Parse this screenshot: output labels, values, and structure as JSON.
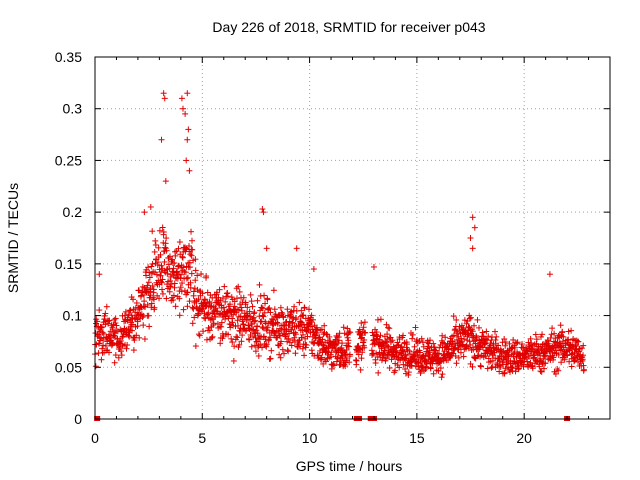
{
  "chart_data": {
    "type": "scatter",
    "title": "Day 226 of 2018, SRMTID for receiver p043",
    "xlabel": "GPS time / hours",
    "ylabel": "SRMTID / TECUs",
    "xlim": [
      0,
      24
    ],
    "ylim": [
      0,
      0.35
    ],
    "x_ticks": [
      0,
      5,
      10,
      15,
      20
    ],
    "y_ticks": [
      0,
      0.05,
      0.1,
      0.15,
      0.2,
      0.25,
      0.3,
      0.35
    ],
    "x_tick_labels": [
      "0",
      "5",
      "10",
      "15",
      "20"
    ],
    "y_tick_labels": [
      "0",
      "0.05",
      "0.1",
      "0.15",
      "0.2",
      "0.25",
      "0.3",
      "0.35"
    ],
    "grid": true,
    "marker": "+",
    "color": "#e00000",
    "trend_profile": [
      [
        0.0,
        0.085
      ],
      [
        1.0,
        0.08
      ],
      [
        1.5,
        0.085
      ],
      [
        2.0,
        0.1
      ],
      [
        2.5,
        0.13
      ],
      [
        3.0,
        0.15
      ],
      [
        3.5,
        0.14
      ],
      [
        4.0,
        0.13
      ],
      [
        4.4,
        0.15
      ],
      [
        4.8,
        0.11
      ],
      [
        6.0,
        0.1
      ],
      [
        8.0,
        0.09
      ],
      [
        10.0,
        0.085
      ],
      [
        11.0,
        0.065
      ],
      [
        12.0,
        0.07
      ],
      [
        13.0,
        0.075
      ],
      [
        14.0,
        0.065
      ],
      [
        16.0,
        0.06
      ],
      [
        17.5,
        0.08
      ],
      [
        18.0,
        0.07
      ],
      [
        19.0,
        0.06
      ],
      [
        20.0,
        0.06
      ],
      [
        21.0,
        0.065
      ],
      [
        22.0,
        0.07
      ],
      [
        22.8,
        0.06
      ]
    ],
    "notable_points": [
      {
        "x": 3.2,
        "y": 0.315
      },
      {
        "x": 3.25,
        "y": 0.31
      },
      {
        "x": 4.05,
        "y": 0.31
      },
      {
        "x": 4.1,
        "y": 0.3
      },
      {
        "x": 4.3,
        "y": 0.315
      },
      {
        "x": 4.2,
        "y": 0.295
      },
      {
        "x": 4.35,
        "y": 0.28
      },
      {
        "x": 4.25,
        "y": 0.25
      },
      {
        "x": 3.1,
        "y": 0.27
      },
      {
        "x": 3.3,
        "y": 0.23
      },
      {
        "x": 4.4,
        "y": 0.24
      },
      {
        "x": 4.3,
        "y": 0.27
      },
      {
        "x": 7.8,
        "y": 0.203
      },
      {
        "x": 7.85,
        "y": 0.2
      },
      {
        "x": 17.6,
        "y": 0.195
      },
      {
        "x": 17.7,
        "y": 0.185
      },
      {
        "x": 17.5,
        "y": 0.175
      },
      {
        "x": 17.6,
        "y": 0.165
      },
      {
        "x": 2.3,
        "y": 0.2
      },
      {
        "x": 2.6,
        "y": 0.205
      },
      {
        "x": 9.4,
        "y": 0.165
      },
      {
        "x": 8.0,
        "y": 0.165
      },
      {
        "x": 13.0,
        "y": 0.147
      },
      {
        "x": 21.2,
        "y": 0.14
      },
      {
        "x": 0.2,
        "y": 0.14
      },
      {
        "x": 10.2,
        "y": 0.145
      }
    ],
    "zero_flags": [
      0.1,
      12.2,
      12.3,
      12.85,
      13.0,
      22.0
    ],
    "gap_hours": [
      [
        11.9,
        12.15
      ],
      [
        12.6,
        12.9
      ],
      [
        22.9,
        24.0
      ]
    ]
  }
}
